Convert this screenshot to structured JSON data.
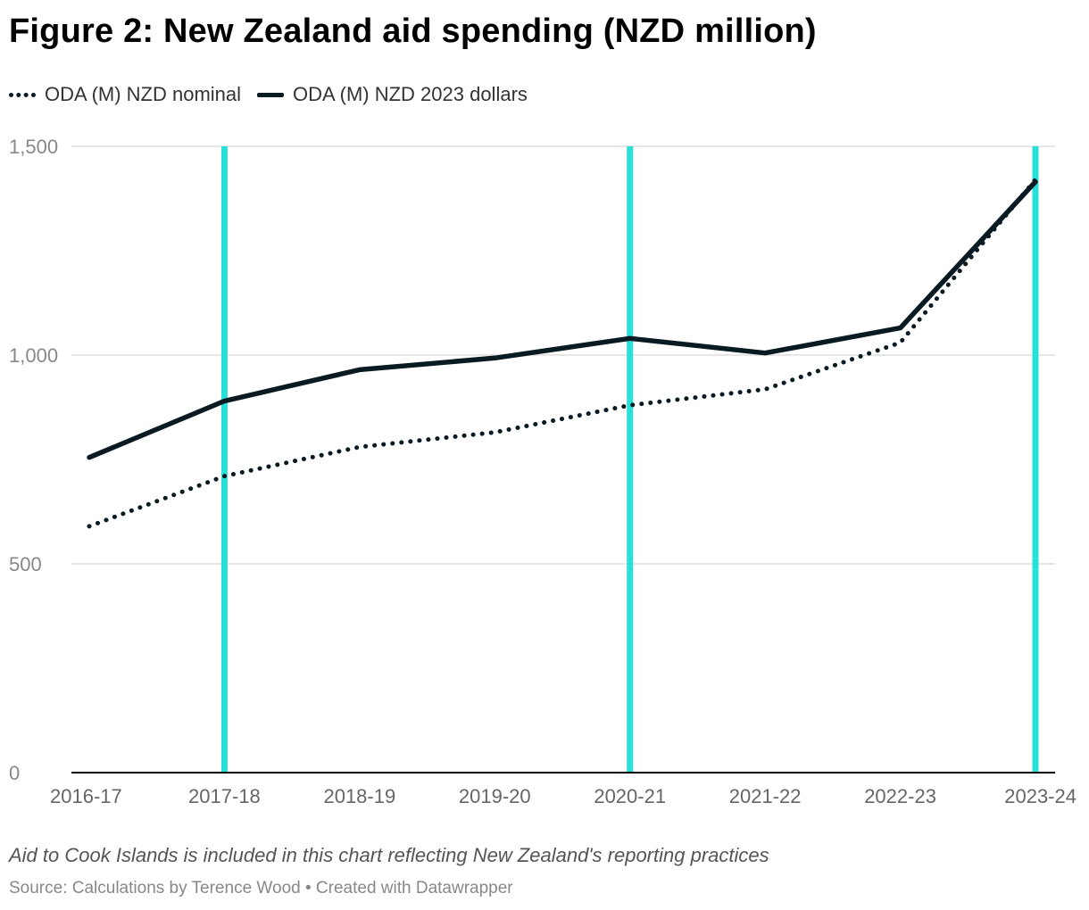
{
  "header": {
    "title": "Figure 2: New Zealand aid spending (NZD million)"
  },
  "legend": {
    "items": [
      {
        "label": "ODA (M) NZD nominal",
        "style": "dotted"
      },
      {
        "label": "ODA (M) NZD 2023 dollars",
        "style": "solid"
      }
    ]
  },
  "footer": {
    "note": "Aid to Cook Islands is included in this chart reflecting New Zealand's reporting practices",
    "source": "Source: Calculations by Terence Wood • Created with Datawrapper"
  },
  "colors": {
    "series": "#0a1a22",
    "highlight_lines": "#29e0d8",
    "grid": "#dddddd",
    "axis_text": "#888888",
    "baseline": "#000000"
  },
  "chart_data": {
    "type": "line",
    "categories": [
      "2016-17",
      "2017-18",
      "2018-19",
      "2019-20",
      "2020-21",
      "2021-22",
      "2022-23",
      "2023-24"
    ],
    "series": [
      {
        "name": "ODA (M) NZD nominal",
        "style": "dotted",
        "values": [
          590,
          710,
          780,
          815,
          880,
          918,
          1030,
          1420
        ]
      },
      {
        "name": "ODA (M) NZD 2023 dollars",
        "style": "solid",
        "values": [
          755,
          890,
          965,
          993,
          1040,
          1005,
          1065,
          1415
        ]
      }
    ],
    "ylim": [
      0,
      1500
    ],
    "yticks": [
      0,
      500,
      1000,
      1500
    ],
    "ytick_labels": [
      "0",
      "500",
      "1,000",
      "1,500"
    ],
    "highlight_categories": [
      "2017-18",
      "2020-21",
      "2023-24"
    ],
    "grid": true,
    "legend_position": "top-left",
    "title": "Figure 2: New Zealand aid spending (NZD million)",
    "xlabel": "",
    "ylabel": ""
  }
}
